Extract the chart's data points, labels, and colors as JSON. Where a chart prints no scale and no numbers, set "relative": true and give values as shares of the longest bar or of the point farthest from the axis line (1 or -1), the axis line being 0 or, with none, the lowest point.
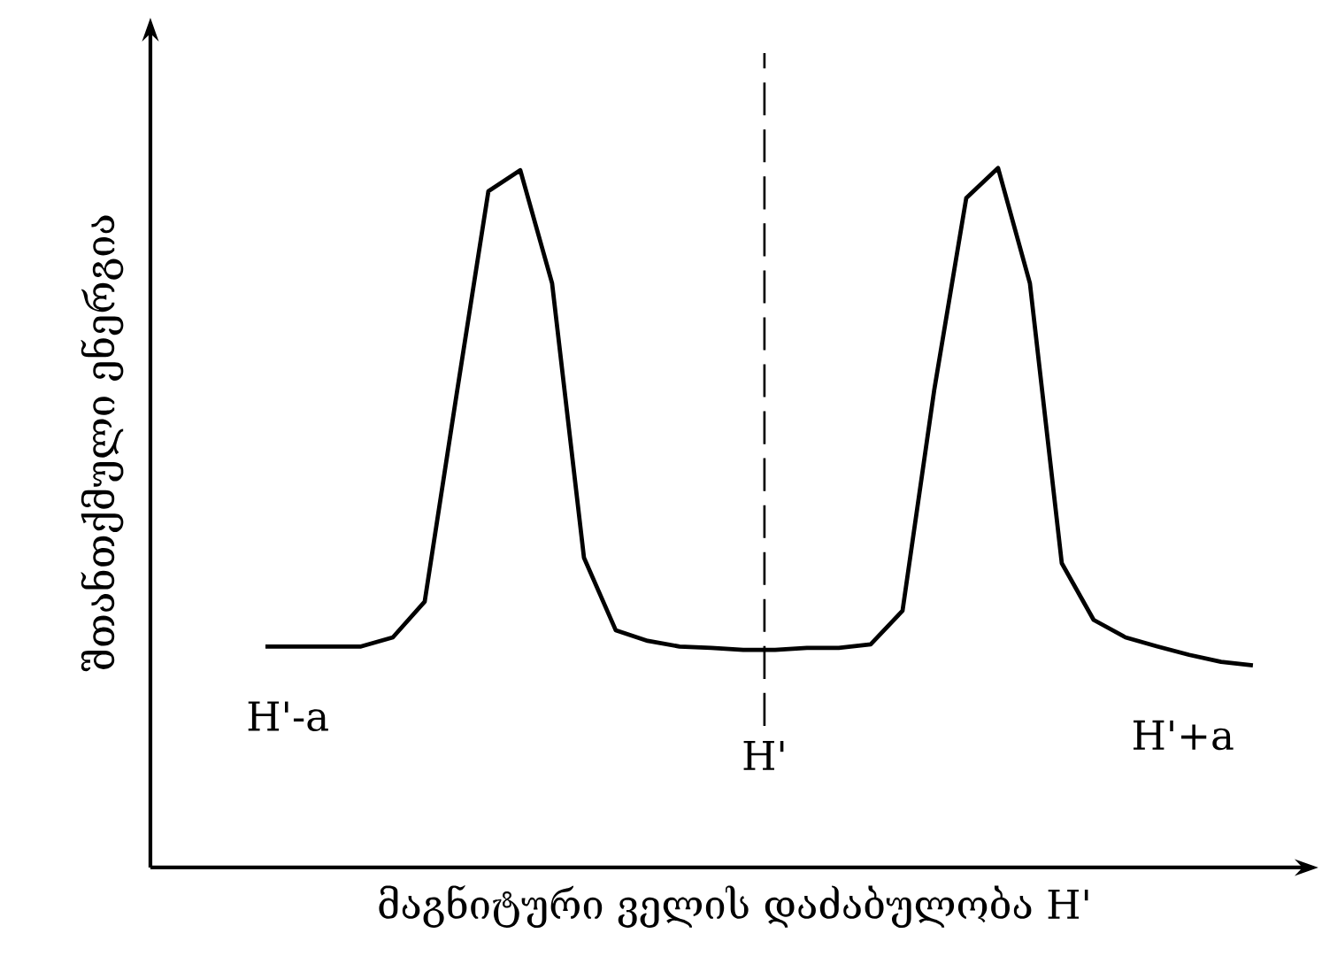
{
  "chart_data": {
    "type": "line",
    "relative": true,
    "xlabel": "მაგნიტური ველის დაძაბულობა H'",
    "ylabel": "შთანთქმული ენერგია",
    "categories": [
      null,
      null,
      null,
      null,
      null,
      null,
      null,
      null,
      null,
      null,
      null,
      null,
      null,
      null,
      null,
      null,
      null,
      null,
      null,
      null,
      null,
      null,
      null,
      null,
      null,
      null,
      null,
      null,
      null,
      null,
      null,
      null
    ],
    "values": [
      0.316,
      0.316,
      0.316,
      0.316,
      0.329,
      0.38,
      0.676,
      0.967,
      0.997,
      0.835,
      0.443,
      0.339,
      0.324,
      0.316,
      0.314,
      0.311,
      0.311,
      0.314,
      0.314,
      0.319,
      0.367,
      0.684,
      0.957,
      1.0,
      0.835,
      0.435,
      0.354,
      0.329,
      0.316,
      0.304,
      0.294,
      0.289
    ],
    "color": "#000000",
    "annotations": [
      "H'-a",
      "H'",
      "H'+a"
    ],
    "line_style": "solid",
    "marker": "none"
  }
}
